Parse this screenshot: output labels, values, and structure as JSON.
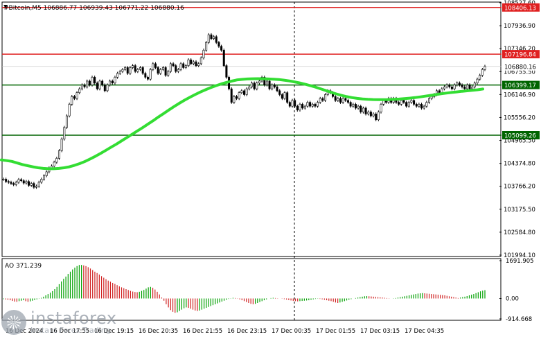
{
  "chart_data": [
    {
      "type": "candlestick",
      "title": "#Bitcoin,M5  106886.77 106939.43 106771.22 106880.16",
      "ylim": [
        101994.1,
        108527.6
      ],
      "y_ticks": [
        "108527.60",
        "107936.90",
        "107346.20",
        "106755.50",
        "106146.90",
        "105556.20",
        "104965.50",
        "104374.80",
        "103766.20",
        "103175.50",
        "102584.80",
        "101994.10"
      ],
      "x_labels": [
        "16 Dec 2024",
        "16 Dec 17:55",
        "16 Dec 19:15",
        "16 Dec 20:35",
        "16 Dec 21:55",
        "16 Dec 23:15",
        "17 Dec 00:35",
        "17 Dec 01:55",
        "17 Dec 03:15",
        "17 Dec 04:35"
      ],
      "close_series": [
        103960,
        103900,
        103880,
        103850,
        103820,
        103880,
        103950,
        103920,
        103860,
        103900,
        103800,
        103850,
        103750,
        103780,
        103880,
        103960,
        104050,
        104150,
        104250,
        104300,
        104400,
        104500,
        104700,
        105000,
        105300,
        105600,
        105900,
        106100,
        106050,
        106200,
        106300,
        106400,
        106350,
        106500,
        106400,
        106600,
        106450,
        106300,
        106500,
        106400,
        106250,
        106400,
        106500,
        106450,
        106600,
        106700,
        106750,
        106800,
        106850,
        106700,
        106850,
        106900,
        106750,
        106800,
        106850,
        106700,
        106600,
        106550,
        106800,
        106950,
        106850,
        106700,
        106800,
        106850,
        106650,
        106750,
        106950,
        106900,
        106750,
        106800,
        106950,
        106850,
        106900,
        107050,
        106950,
        107000,
        106900,
        106950,
        107100,
        107300,
        107500,
        107700,
        107600,
        107650,
        107500,
        107400,
        107300,
        106900,
        106600,
        106300,
        105950,
        106100,
        106050,
        106200,
        106250,
        106150,
        106300,
        106350,
        106450,
        106300,
        106450,
        106500,
        106600,
        106400,
        106500,
        106300,
        106400,
        106350,
        106250,
        106150,
        106050,
        106200,
        105950,
        105850,
        106000,
        105850,
        105750,
        105900,
        105800,
        105850,
        105950,
        105850,
        105900,
        105850,
        105950,
        106050,
        106000,
        106150,
        106250,
        106200,
        106100,
        106000,
        106050,
        105950,
        106050,
        106000,
        105950,
        105850,
        105900,
        105800,
        105850,
        105700,
        105800,
        105650,
        105700,
        105600,
        105650,
        105500,
        105700,
        105900,
        106000,
        105950,
        106050,
        105950,
        106050,
        105950,
        105900,
        106000,
        105950,
        105850,
        105950,
        106000,
        105900,
        105850,
        105900,
        105800,
        105850,
        105950,
        106050,
        106100,
        106150,
        106250,
        106200,
        106300,
        106350,
        106400,
        106350,
        106300,
        106400,
        106450,
        106400,
        106350,
        106300,
        106400,
        106300,
        106350,
        106450,
        106550,
        106650,
        106800,
        106880.16
      ],
      "ma_series": [
        104460,
        104440,
        104420,
        104380,
        104340,
        104310,
        104280,
        104255,
        104240,
        104230,
        104230,
        104240,
        104255,
        104280,
        104320,
        104365,
        104420,
        104485,
        104555,
        104630,
        104710,
        104790,
        104870,
        104955,
        105040,
        105125,
        105210,
        105295,
        105385,
        105475,
        105570,
        105660,
        105750,
        105840,
        105925,
        106005,
        106080,
        106150,
        106215,
        106275,
        106330,
        106380,
        106425,
        106465,
        106500,
        106530,
        106545,
        106555,
        106560,
        106562,
        106560,
        106555,
        106550,
        106540,
        106525,
        106505,
        106480,
        106452,
        106420,
        106385,
        106345,
        106300,
        106255,
        106210,
        106168,
        106130,
        106098,
        106072,
        106052,
        106038,
        106028,
        106022,
        106020,
        106020,
        106022,
        106028,
        106035,
        106045,
        106058,
        106072,
        106090,
        106110,
        106130,
        106150,
        106170,
        106188,
        106205,
        106220,
        106235,
        106248,
        106260,
        106275,
        106295
      ],
      "resistance_lines": [
        108406.13,
        107196.84
      ],
      "support_lines": [
        106399.17,
        105099.26
      ],
      "price_labels": {
        "r1": "108406.13",
        "r2": "107196.84",
        "current": "106880.16",
        "s1": "106399.17",
        "s2": "105099.26"
      },
      "colors": {
        "candle": "#000000",
        "resistance": "#e02020",
        "support": "#006400",
        "ma": "#33dd33",
        "current_tag": "#ffffff"
      }
    },
    {
      "type": "bar",
      "title": "AO 371.239",
      "ylim": [
        -914.668,
        1691.905
      ],
      "y_ticks": [
        "1691.905",
        "0.00",
        "-914.668"
      ],
      "values": [
        -30,
        -45,
        -60,
        -80,
        -110,
        -140,
        -150,
        -120,
        -100,
        -80,
        -120,
        -150,
        -130,
        -100,
        -70,
        -40,
        -10,
        30,
        80,
        140,
        200,
        260,
        330,
        420,
        520,
        640,
        760,
        880,
        980,
        1100,
        1200,
        1300,
        1380,
        1450,
        1500,
        1500,
        1480,
        1450,
        1400,
        1340,
        1270,
        1200,
        1140,
        1070,
        1000,
        930,
        860,
        800,
        750,
        700,
        650,
        600,
        540,
        500,
        460,
        420,
        380,
        340,
        310,
        290,
        280,
        300,
        340,
        380,
        440,
        500,
        520,
        480,
        400,
        300,
        180,
        40,
        -100,
        -260,
        -400,
        -520,
        -600,
        -640,
        -620,
        -560,
        -500,
        -440,
        -400,
        -420,
        -460,
        -500,
        -540,
        -560,
        -540,
        -500,
        -460,
        -420,
        -380,
        -340,
        -300,
        -260,
        -220,
        -180,
        -140,
        -100,
        -60,
        -20,
        10,
        30,
        20,
        -10,
        -40,
        -80,
        -120,
        -160,
        -200,
        -240,
        -260,
        -240,
        -200,
        -160,
        -120,
        -80,
        -40,
        0,
        20,
        30,
        20,
        10,
        0,
        -10,
        -30,
        -50,
        -70,
        -90,
        -110,
        -120,
        -130,
        -120,
        -110,
        -100,
        -90,
        -80,
        -60,
        -40,
        -20,
        -10,
        -20,
        -40,
        -60,
        -80,
        -100,
        -120,
        -150,
        -180,
        -200,
        -180,
        -150,
        -120,
        -90,
        -60,
        -30,
        0,
        20,
        40,
        60,
        80,
        100,
        110,
        100,
        90,
        80,
        70,
        60,
        50,
        40,
        30,
        20,
        10,
        0,
        10,
        20,
        40,
        60,
        80,
        100,
        120,
        140,
        160,
        180,
        200,
        220,
        230,
        240,
        230,
        220,
        210,
        200,
        190,
        180,
        170,
        160,
        150,
        140,
        120,
        100,
        80,
        60,
        40,
        20,
        40,
        60,
        80,
        110,
        140,
        170,
        200,
        240,
        280,
        320,
        350,
        371
      ],
      "colors": {
        "up": "#00a000",
        "down": "#d02020"
      }
    }
  ],
  "watermark": {
    "name": "instaforex",
    "tagline": "Instant Forex Trading"
  }
}
